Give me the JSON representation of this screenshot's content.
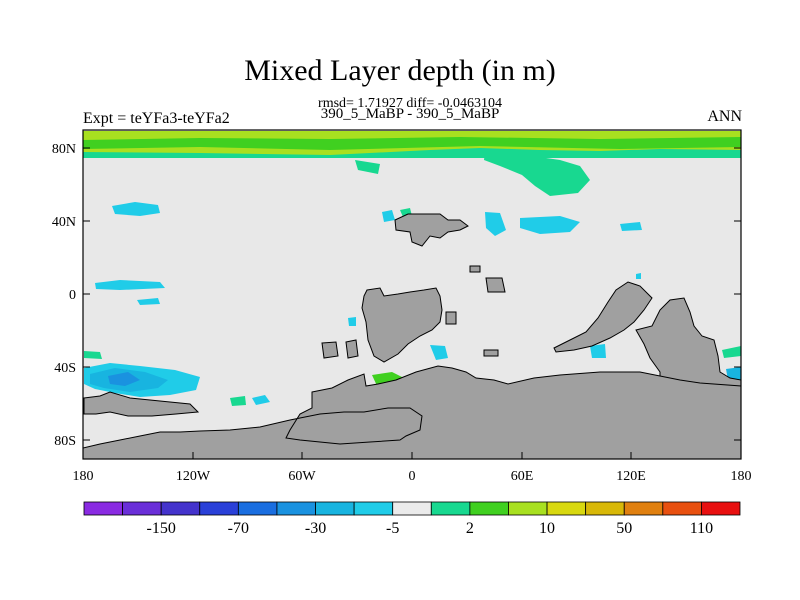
{
  "title": "Mixed Layer depth (in m)",
  "subtitle": "rmsd= 1.71927 diff= -0.0463104",
  "subtitle2": "390_5_MaBP - 390_5_MaBP",
  "left_label": "Expt = teYFa3-teYFa2",
  "right_label": "ANN",
  "map": {
    "projection": "cylindrical-equidistant",
    "lon_range": [
      -180,
      180
    ],
    "lat_range": [
      -90,
      90
    ],
    "x_ticks": [
      "180",
      "120W",
      "60W",
      "0",
      "60E",
      "120E",
      "180"
    ],
    "y_ticks": [
      "80N",
      "40N",
      "0",
      "40S",
      "80S"
    ],
    "land_color": "#a0a0a0",
    "ocean_background_color": "#e8e8e8"
  },
  "colorbar": {
    "colors": [
      "#8a2be2",
      "#6a2fd8",
      "#4433cc",
      "#2a40d8",
      "#1a6ee0",
      "#1a92e0",
      "#18b4e0",
      "#20cce8",
      "#ebebeb",
      "#18d890",
      "#40d020",
      "#a8e020",
      "#d8d810",
      "#d8b808",
      "#e08010",
      "#e85010",
      "#e81010"
    ],
    "labels": [
      "-150",
      "-70",
      "-30",
      "-5",
      "2",
      "10",
      "50",
      "110"
    ]
  }
}
